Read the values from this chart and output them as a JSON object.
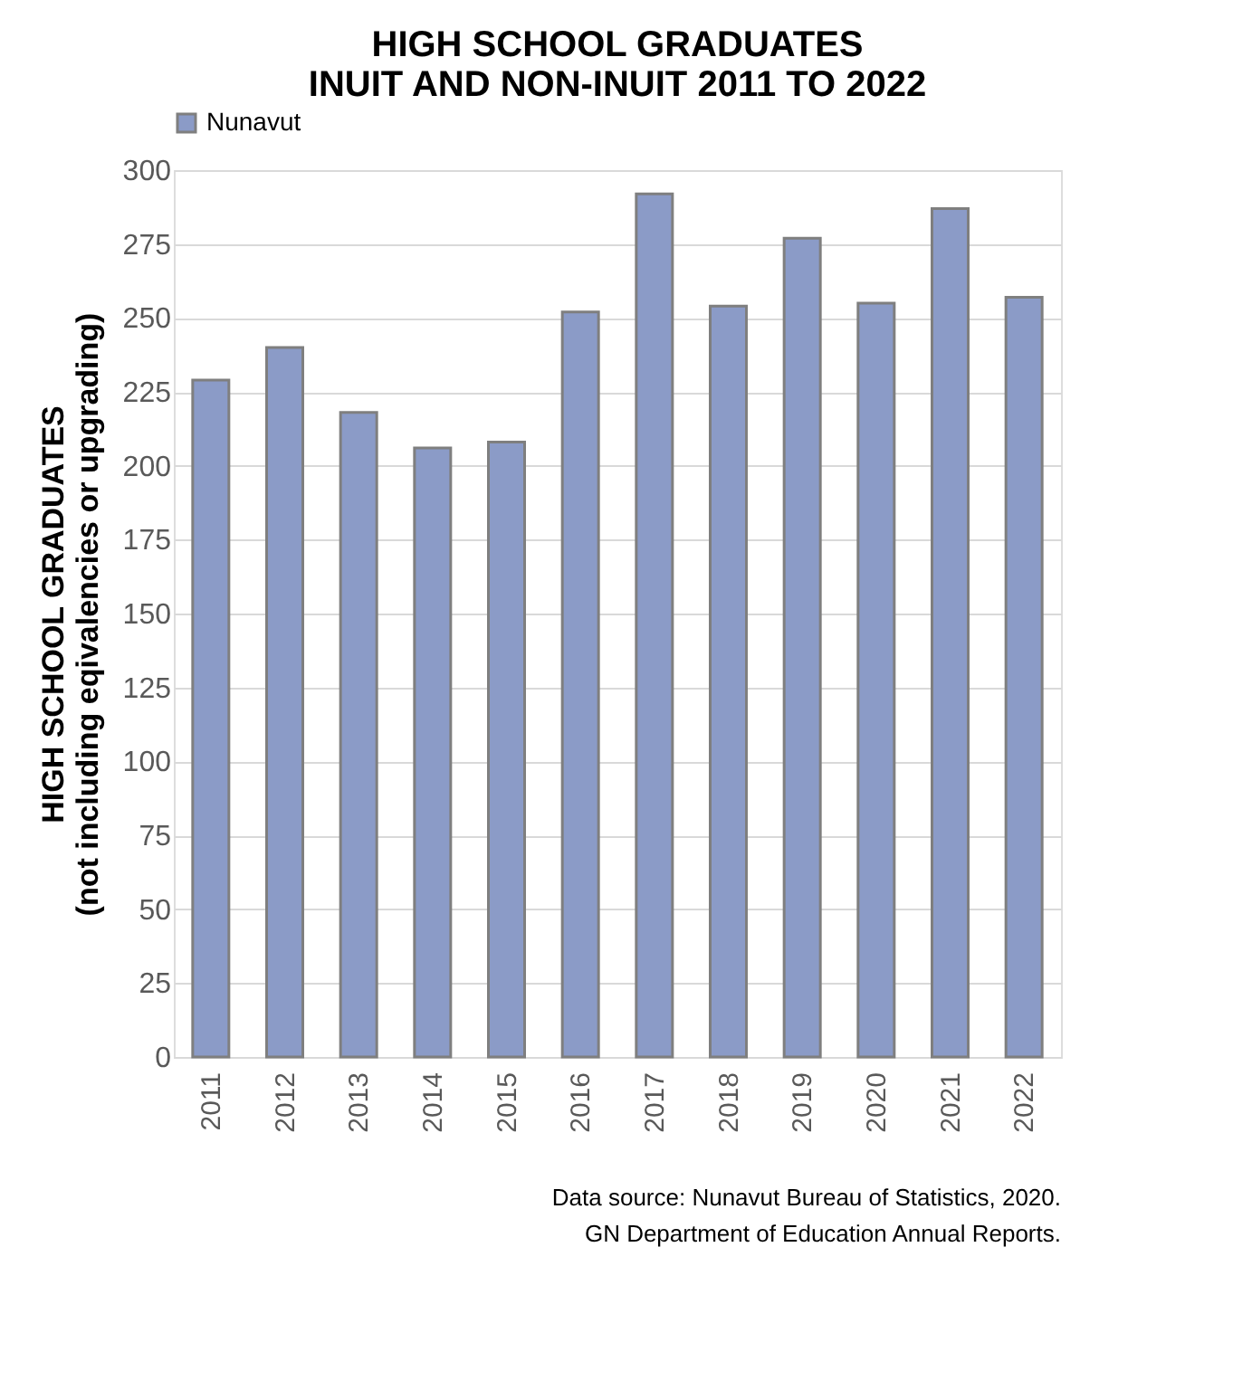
{
  "chart_data": {
    "type": "bar",
    "title": [
      "HIGH SCHOOL GRADUATES",
      "INUIT AND NON-INUIT 2011 TO 2022"
    ],
    "ylabel": [
      "HIGH SCHOOL GRADUATES",
      "(not including eqivalencies or upgrading)"
    ],
    "categories": [
      "2011",
      "2012",
      "2013",
      "2014",
      "2015",
      "2016",
      "2017",
      "2018",
      "2019",
      "2020",
      "2021",
      "2022"
    ],
    "series": [
      {
        "name": "Nunavut",
        "color": "#8b9bc7",
        "values": [
          229,
          240,
          218,
          206,
          208,
          252,
          292,
          254,
          277,
          255,
          287,
          257
        ]
      }
    ],
    "ylim": [
      0,
      300
    ],
    "yticks": [
      0,
      25,
      50,
      75,
      100,
      125,
      150,
      175,
      200,
      225,
      250,
      275,
      300
    ],
    "grid": "y",
    "legend": "top",
    "annotations": [
      "Data source: Nunavut Bureau of Statistics, 2020.",
      "GN Department of Education Annual Reports."
    ]
  }
}
